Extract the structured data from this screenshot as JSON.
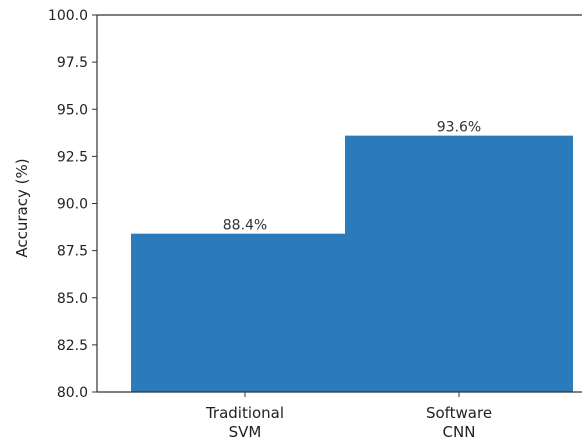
{
  "chart_data": {
    "type": "bar",
    "title": "",
    "xlabel": "",
    "ylabel": "Accuracy (%)",
    "ylim": [
      80.0,
      100.0
    ],
    "yticks": [
      "80.0",
      "82.5",
      "85.0",
      "87.5",
      "90.0",
      "92.5",
      "95.0",
      "97.5",
      "100.0"
    ],
    "categories": [
      {
        "line1": "Traditional",
        "line2": "SVM"
      },
      {
        "line1": "Software",
        "line2": "CNN"
      }
    ],
    "values": [
      88.4,
      93.6
    ],
    "data_labels": [
      "88.4%",
      "93.6%"
    ],
    "bar_color": "#2b7bba",
    "grid": false,
    "legend": "none"
  }
}
